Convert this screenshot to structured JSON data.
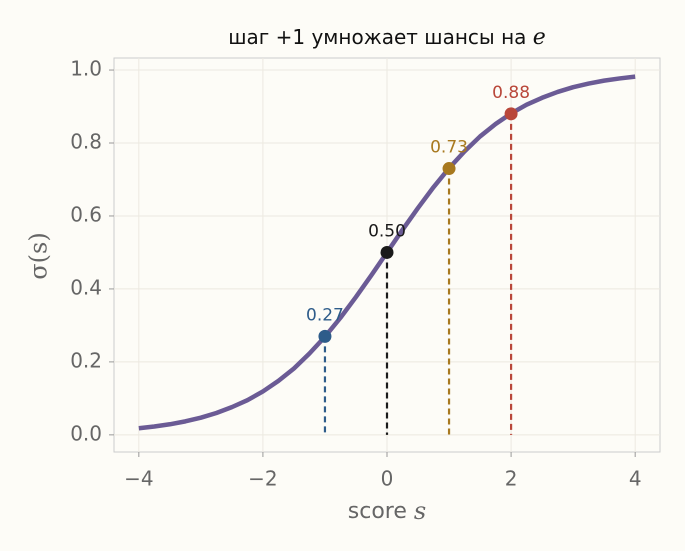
{
  "chart_data": {
    "type": "line",
    "title": "шаг +1 умножает шансы на",
    "title_symbol": "e",
    "xlabel": "score",
    "xlabel_symbol": "s",
    "ylabel": "σ(s)",
    "x": [
      -4,
      -3.75,
      -3.5,
      -3.25,
      -3,
      -2.75,
      -2.5,
      -2.25,
      -2,
      -1.75,
      -1.5,
      -1.25,
      -1,
      -0.75,
      -0.5,
      -0.25,
      0,
      0.25,
      0.5,
      0.75,
      1,
      1.25,
      1.5,
      1.75,
      2,
      2.25,
      2.5,
      2.75,
      3,
      3.25,
      3.5,
      3.75,
      4
    ],
    "series": [
      {
        "name": "σ(s)",
        "color": "#6b5b95",
        "values": [
          0.018,
          0.023,
          0.029,
          0.037,
          0.047,
          0.06,
          0.076,
          0.095,
          0.119,
          0.148,
          0.182,
          0.223,
          0.269,
          0.321,
          0.378,
          0.438,
          0.5,
          0.562,
          0.622,
          0.679,
          0.731,
          0.777,
          0.818,
          0.852,
          0.881,
          0.905,
          0.924,
          0.94,
          0.953,
          0.963,
          0.971,
          0.977,
          0.982
        ]
      }
    ],
    "points": {
      "x": [
        -1,
        0,
        1,
        2
      ],
      "values": [
        0.27,
        0.5,
        0.73,
        0.88
      ],
      "value_labels": [
        "0.27",
        "0.50",
        "0.73",
        "0.88"
      ],
      "colors": [
        "#2e5c8a",
        "#1a1a1a",
        "#a8791f",
        "#b9473a"
      ]
    },
    "xlim": [
      -4.4,
      4.4
    ],
    "ylim": [
      -0.047,
      1.033
    ],
    "xticks": [
      {
        "value": -4,
        "label": "−4"
      },
      {
        "value": -2,
        "label": "−2"
      },
      0,
      2,
      4
    ],
    "yticks": [
      {
        "value": 0,
        "label": "0.0"
      },
      0.2,
      0.4,
      0.6,
      0.8,
      {
        "value": 1,
        "label": "1.0"
      }
    ],
    "grid": true
  }
}
